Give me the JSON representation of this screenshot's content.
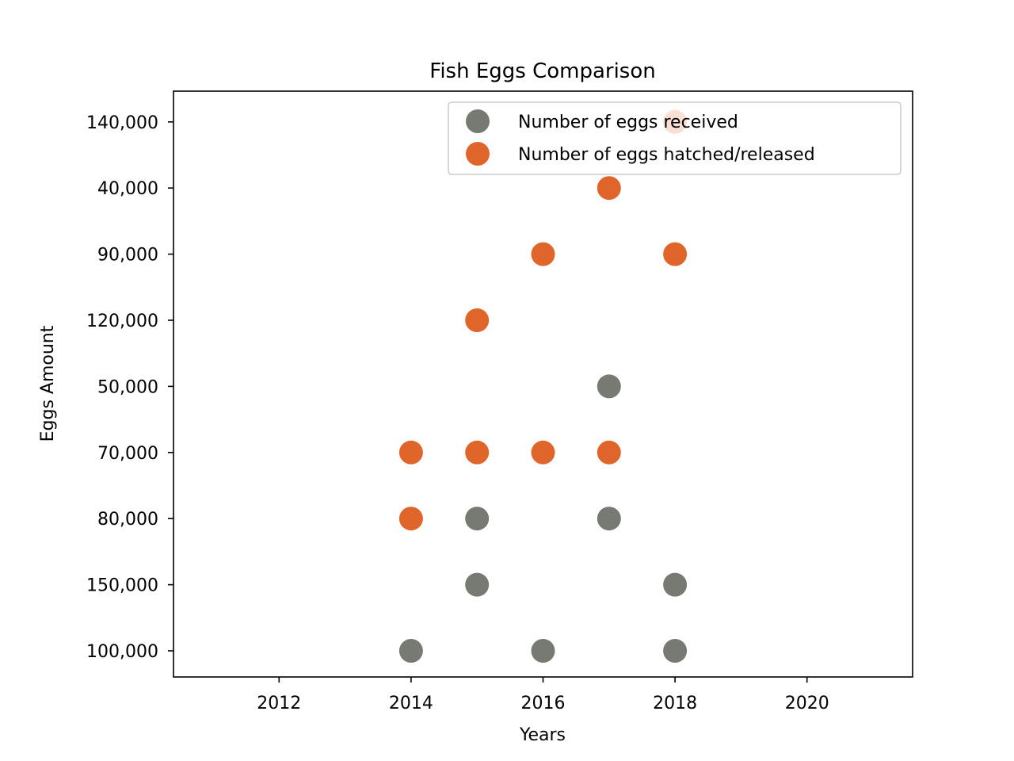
{
  "chart_data": {
    "type": "scatter",
    "title": "Fish Eggs Comparison",
    "xlabel": "Years",
    "ylabel": "Eggs Amount",
    "x_ticks": [
      2012,
      2014,
      2016,
      2018,
      2020
    ],
    "xlim": [
      2010.4,
      2021.6
    ],
    "y_categories": [
      "100,000",
      "150,000",
      "80,000",
      "70,000",
      "50,000",
      "120,000",
      "90,000",
      "40,000",
      "140,000"
    ],
    "series": [
      {
        "name": "Number of eggs received",
        "color": "#767a72",
        "points": [
          {
            "x": 2014,
            "y": "100,000"
          },
          {
            "x": 2015,
            "y": "150,000"
          },
          {
            "x": 2015,
            "y": "80,000"
          },
          {
            "x": 2016,
            "y": "100,000"
          },
          {
            "x": 2017,
            "y": "80,000"
          },
          {
            "x": 2017,
            "y": "50,000"
          },
          {
            "x": 2018,
            "y": "150,000"
          },
          {
            "x": 2018,
            "y": "100,000"
          }
        ]
      },
      {
        "name": "Number of eggs hatched/released",
        "color": "#e0652a",
        "points": [
          {
            "x": 2014,
            "y": "80,000"
          },
          {
            "x": 2014,
            "y": "70,000"
          },
          {
            "x": 2015,
            "y": "70,000"
          },
          {
            "x": 2015,
            "y": "120,000"
          },
          {
            "x": 2016,
            "y": "70,000"
          },
          {
            "x": 2016,
            "y": "90,000"
          },
          {
            "x": 2017,
            "y": "70,000"
          },
          {
            "x": 2017,
            "y": "40,000"
          },
          {
            "x": 2018,
            "y": "90,000"
          },
          {
            "x": 2018,
            "y": "140,000"
          }
        ]
      }
    ],
    "legend_position": "top-right",
    "grid": false
  }
}
